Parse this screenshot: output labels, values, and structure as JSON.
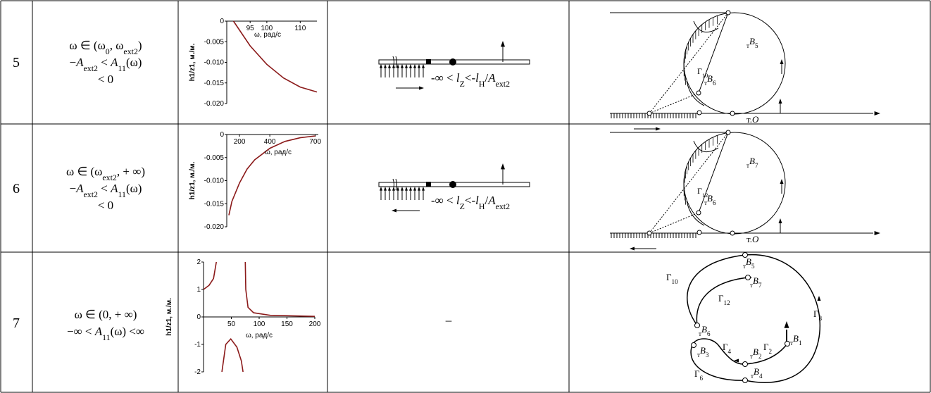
{
  "rows": [
    {
      "number": "5",
      "condition": [
        [
          {
            "text": "ω ∈ (ω"
          },
          {
            "sub": "0"
          },
          {
            "text": ", ω"
          },
          {
            "sub": "ext2"
          },
          {
            "text": ")"
          }
        ],
        [
          {
            "text": "−"
          },
          {
            "i": "A"
          },
          {
            "sub": "ext2"
          },
          {
            "text": " < "
          },
          {
            "i": "A"
          },
          {
            "sub": "11"
          },
          {
            "text": "(ω)"
          }
        ],
        [
          {
            "text": "< 0"
          }
        ]
      ],
      "plot": {
        "ylabel": "h1/z1, м./м.",
        "xlabel": "ω, рад/с",
        "color": "#8b1a1a",
        "xlim": [
          88,
          115
        ],
        "ylim": [
          -0.02,
          0
        ],
        "xticks": [
          95,
          100,
          110
        ],
        "yticks": [
          0,
          -0.005,
          {
            "value": -0.01,
            "label": "-0.010"
          },
          -0.015,
          {
            "value": -0.02,
            "label": "-0.020"
          }
        ],
        "x": [
          90,
          95,
          100,
          105,
          110,
          115
        ],
        "values": [
          0,
          -0.006,
          -0.0105,
          -0.0138,
          -0.016,
          -0.0172
        ]
      },
      "beam": {
        "direction": "right",
        "label": [
          {
            "text": "-∞ < "
          },
          {
            "i": "l"
          },
          {
            "sub": "Z"
          },
          {
            "text": "<-"
          },
          {
            "i": "l"
          },
          {
            "sub": "H"
          },
          {
            "text": "/"
          },
          {
            "i": "A"
          },
          {
            "sub": "ext2"
          }
        ]
      },
      "diagram": {
        "labels": [
          [
            {
              "sub": "т"
            },
            {
              "i": "B"
            },
            {
              "sub": "5"
            }
          ],
          [
            {
              "text": "Γ"
            },
            {
              "sub": "10"
            }
          ],
          [
            {
              "sub": "т"
            },
            {
              "i": "B"
            },
            {
              "sub": "6"
            }
          ],
          [
            {
              "text": "т."
            },
            {
              "i": "O"
            }
          ]
        ]
      }
    },
    {
      "number": "6",
      "condition": [
        [
          {
            "text": "ω ∈ (ω"
          },
          {
            "sub": "ext2"
          },
          {
            "text": ", + ∞)"
          }
        ],
        [
          {
            "text": "−"
          },
          {
            "i": "A"
          },
          {
            "sub": "ext2"
          },
          {
            "text": " < "
          },
          {
            "i": "A"
          },
          {
            "sub": "11"
          },
          {
            "text": "(ω)"
          }
        ],
        [
          {
            "text": "< 0"
          }
        ]
      ],
      "plot": {
        "ylabel": "h1/z1, м./м.",
        "xlabel": "ω, рад/с",
        "color": "#8b1a1a",
        "xlim": [
          116,
          720
        ],
        "ylim": [
          -0.02,
          0
        ],
        "xticks": [
          200,
          400,
          700
        ],
        "yticks": [
          0,
          -0.005,
          {
            "value": -0.01,
            "label": "-0.010"
          },
          -0.015,
          {
            "value": -0.02,
            "label": "-0.020"
          }
        ],
        "x": [
          130,
          150,
          200,
          250,
          300,
          400,
          500,
          600,
          700
        ],
        "values": [
          -0.0175,
          -0.0145,
          -0.0105,
          -0.0075,
          -0.0055,
          -0.003,
          -0.0015,
          -0.0007,
          -0.0003
        ]
      },
      "beam": {
        "direction": "left",
        "label": [
          {
            "text": "-∞ < "
          },
          {
            "i": "l"
          },
          {
            "sub": "Z"
          },
          {
            "text": "<-"
          },
          {
            "i": "l"
          },
          {
            "sub": "H"
          },
          {
            "text": "/"
          },
          {
            "i": "A"
          },
          {
            "sub": "ext2"
          }
        ]
      },
      "diagram": {
        "labels": [
          [
            {
              "sub": "т"
            },
            {
              "i": "B"
            },
            {
              "sub": "7"
            }
          ],
          [
            {
              "text": "Γ"
            },
            {
              "sub": "12"
            }
          ],
          [
            {
              "sub": "т"
            },
            {
              "i": "B"
            },
            {
              "sub": "6"
            }
          ],
          [
            {
              "text": "т."
            },
            {
              "i": "O"
            }
          ]
        ]
      }
    },
    {
      "number": "7",
      "condition": [
        [
          {
            "text": "ω ∈ (0, + ∞)"
          }
        ],
        [
          {
            "text": "−∞ < "
          },
          {
            "i": "A"
          },
          {
            "sub": "11"
          },
          {
            "text": "(ω) <∞"
          }
        ]
      ],
      "plot": {
        "ylabel": "h1/z1, м./м.",
        "xlabel": "ω, рад/с",
        "color": "#8b1a1a",
        "xlim": [
          0,
          200
        ],
        "ylim": [
          -2,
          2
        ],
        "xticks": [
          50,
          100,
          150,
          200
        ],
        "yticks": [
          2,
          1,
          0,
          -1,
          -2
        ],
        "x": [
          0,
          10,
          18,
          23,
          null,
          33,
          40,
          49,
          60,
          68,
          71,
          null,
          75,
          76,
          80,
          90,
          120,
          200
        ],
        "values": [
          1,
          1.15,
          1.4,
          2,
          null,
          -2,
          -1,
          -0.8,
          -1.1,
          -1.6,
          -2,
          null,
          2,
          1,
          0.35,
          0.15,
          0.06,
          0.02
        ]
      },
      "beam": {
        "label": [
          {
            "text": "–"
          }
        ]
      },
      "diagram": {
        "labels": [
          [
            {
              "text": "Γ"
            },
            {
              "sub": "10"
            }
          ],
          [
            {
              "sub": "т"
            },
            {
              "i": "B"
            },
            {
              "sub": "5"
            }
          ],
          [
            {
              "sub": "т"
            },
            {
              "i": "B"
            },
            {
              "sub": "7"
            }
          ],
          [
            {
              "text": "Γ"
            },
            {
              "sub": "12"
            }
          ],
          [
            {
              "text": "Γ"
            },
            {
              "sub": "8"
            }
          ],
          [
            {
              "sub": "т"
            },
            {
              "i": "B"
            },
            {
              "sub": "6"
            }
          ],
          [
            {
              "text": "Γ"
            },
            {
              "sub": "4"
            }
          ],
          [
            {
              "sub": "т"
            },
            {
              "i": "B"
            },
            {
              "sub": "3"
            }
          ],
          [
            {
              "sub": "т"
            },
            {
              "i": "B"
            },
            {
              "sub": "2"
            }
          ],
          [
            {
              "text": "Γ"
            },
            {
              "sub": "2"
            }
          ],
          [
            {
              "sub": "т"
            },
            {
              "i": "B"
            },
            {
              "sub": "1"
            }
          ],
          [
            {
              "sub": "т"
            },
            {
              "i": "B"
            },
            {
              "sub": "4"
            }
          ],
          [
            {
              "text": "Γ"
            },
            {
              "sub": "6"
            }
          ]
        ]
      }
    }
  ]
}
